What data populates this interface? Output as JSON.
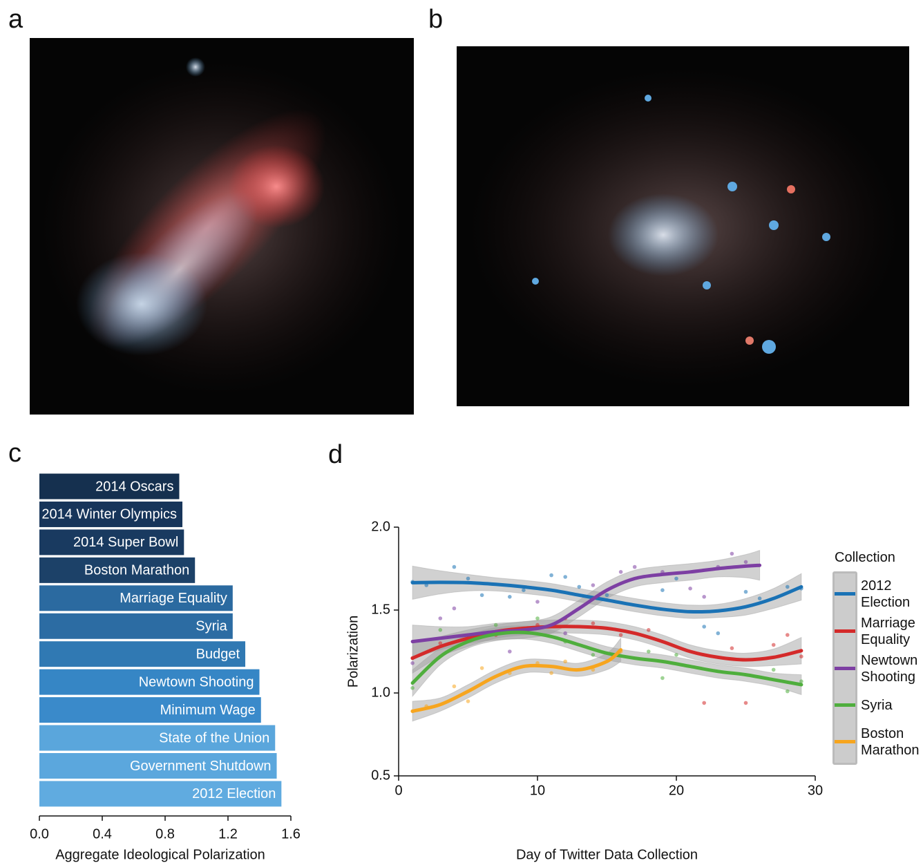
{
  "chart_data": [
    {
      "type": "image",
      "label": "a"
    },
    {
      "type": "image",
      "label": "b"
    },
    {
      "type": "bar",
      "label": "c",
      "orientation": "horizontal",
      "categories": [
        "2014 Oscars",
        "2014 Winter Olympics",
        "2014 Super Bowl",
        "Boston Marathon",
        "Marriage Equality",
        "Syria",
        "Budget",
        "Newtown Shooting",
        "Minimum Wage",
        "State of the Union",
        "Government Shutdown",
        "2012 Election"
      ],
      "values": [
        0.89,
        0.91,
        0.92,
        0.99,
        1.23,
        1.23,
        1.31,
        1.4,
        1.41,
        1.5,
        1.51,
        1.54
      ],
      "colors": [
        "#15304f",
        "#17355a",
        "#193a60",
        "#1c4168",
        "#2b6aa0",
        "#2c6ca3",
        "#3079b3",
        "#3686c5",
        "#3a8aca",
        "#5aa6dc",
        "#5ba7dd",
        "#60abe0"
      ],
      "xlabel": "Aggregate Ideological Polarization",
      "xlim": [
        0,
        1.6
      ],
      "xticks": [
        {
          "value": 0,
          "label": "0.0"
        },
        0.4,
        0.8,
        1.2,
        1.6
      ]
    },
    {
      "type": "line",
      "label": "d",
      "xlabel": "Day of Twitter Data Collection",
      "ylabel": "Polarization",
      "xlim": [
        0,
        30
      ],
      "xticks": [
        0,
        10,
        20,
        30
      ],
      "ylim": [
        0.5,
        2.0
      ],
      "yticks": [
        0.5,
        {
          "value": 1,
          "label": "1.0"
        },
        1.5,
        {
          "value": 2,
          "label": "2.0"
        }
      ],
      "legend_title": "Collection",
      "legend_position": "right",
      "series": [
        {
          "name": "2012 Election",
          "color": "#1a72b5",
          "x": [
            1,
            3,
            5,
            7,
            9,
            11,
            13,
            15,
            17,
            19,
            21,
            23,
            25,
            27,
            29
          ],
          "values": [
            1.665,
            1.667,
            1.665,
            1.655,
            1.64,
            1.62,
            1.59,
            1.56,
            1.53,
            1.505,
            1.49,
            1.495,
            1.52,
            1.57,
            1.64
          ],
          "ci_lower": [
            1.565,
            1.597,
            1.615,
            1.615,
            1.6,
            1.58,
            1.55,
            1.52,
            1.49,
            1.465,
            1.45,
            1.455,
            1.47,
            1.51,
            1.56
          ],
          "ci_upper": [
            1.765,
            1.737,
            1.715,
            1.695,
            1.68,
            1.66,
            1.63,
            1.6,
            1.57,
            1.545,
            1.53,
            1.535,
            1.57,
            1.63,
            1.72
          ],
          "points_x": [
            1,
            2,
            4,
            5,
            6,
            8,
            9,
            11,
            12,
            13,
            15,
            19,
            20,
            22,
            23,
            25,
            26,
            28,
            29
          ],
          "points_y": [
            1.67,
            1.65,
            1.76,
            1.69,
            1.59,
            1.58,
            1.62,
            1.71,
            1.7,
            1.64,
            1.59,
            1.62,
            1.69,
            1.4,
            1.36,
            1.61,
            1.57,
            1.64,
            1.63
          ]
        },
        {
          "name": "Marriage Equality",
          "color": "#d42a2a",
          "x": [
            1,
            3,
            5,
            7,
            9,
            11,
            13,
            15,
            17,
            19,
            21,
            23,
            25,
            27,
            29
          ],
          "values": [
            1.21,
            1.28,
            1.33,
            1.37,
            1.39,
            1.4,
            1.4,
            1.39,
            1.36,
            1.31,
            1.25,
            1.215,
            1.2,
            1.215,
            1.255
          ],
          "ci_lower": [
            1.12,
            1.22,
            1.28,
            1.33,
            1.35,
            1.36,
            1.36,
            1.35,
            1.32,
            1.27,
            1.21,
            1.175,
            1.16,
            1.165,
            1.175
          ],
          "ci_upper": [
            1.3,
            1.34,
            1.38,
            1.41,
            1.43,
            1.44,
            1.44,
            1.43,
            1.4,
            1.35,
            1.29,
            1.255,
            1.24,
            1.265,
            1.335
          ],
          "points_x": [
            1,
            3,
            7,
            10,
            12,
            14,
            16,
            18,
            22,
            24,
            25,
            27,
            28,
            29
          ],
          "points_y": [
            1.21,
            1.3,
            1.35,
            1.41,
            1.45,
            1.42,
            1.35,
            1.38,
            0.94,
            1.27,
            0.94,
            1.29,
            1.35,
            1.22
          ]
        },
        {
          "name": "Newtown Shooting",
          "color": "#7d3fa3",
          "x": [
            1,
            3,
            5,
            7,
            9,
            11,
            13,
            15,
            17,
            19,
            21,
            23,
            25,
            26
          ],
          "values": [
            1.31,
            1.33,
            1.35,
            1.37,
            1.38,
            1.41,
            1.51,
            1.62,
            1.69,
            1.715,
            1.73,
            1.75,
            1.765,
            1.77
          ],
          "ci_lower": [
            1.21,
            1.26,
            1.3,
            1.32,
            1.33,
            1.36,
            1.46,
            1.57,
            1.64,
            1.665,
            1.68,
            1.7,
            1.695,
            1.68
          ],
          "ci_upper": [
            1.41,
            1.4,
            1.4,
            1.42,
            1.43,
            1.46,
            1.56,
            1.67,
            1.74,
            1.765,
            1.78,
            1.8,
            1.835,
            1.86
          ],
          "points_x": [
            1,
            3,
            4,
            8,
            10,
            12,
            14,
            16,
            17,
            19,
            21,
            22,
            23,
            24,
            25
          ],
          "points_y": [
            1.18,
            1.45,
            1.51,
            1.25,
            1.55,
            1.36,
            1.65,
            1.73,
            1.76,
            1.73,
            1.63,
            1.58,
            1.76,
            1.84,
            1.79
          ]
        },
        {
          "name": "Syria",
          "color": "#4fae3d",
          "x": [
            1,
            3,
            5,
            7,
            9,
            11,
            13,
            15,
            17,
            19,
            21,
            23,
            25,
            27,
            29
          ],
          "values": [
            1.06,
            1.22,
            1.31,
            1.355,
            1.365,
            1.34,
            1.29,
            1.24,
            1.21,
            1.19,
            1.16,
            1.13,
            1.11,
            1.08,
            1.05
          ],
          "ci_lower": [
            0.98,
            1.17,
            1.27,
            1.315,
            1.325,
            1.3,
            1.25,
            1.2,
            1.17,
            1.15,
            1.12,
            1.09,
            1.07,
            1.04,
            0.99
          ],
          "ci_upper": [
            1.14,
            1.27,
            1.35,
            1.395,
            1.405,
            1.38,
            1.33,
            1.28,
            1.25,
            1.23,
            1.2,
            1.17,
            1.15,
            1.12,
            1.11
          ],
          "points_x": [
            1,
            3,
            7,
            10,
            12,
            14,
            18,
            19,
            20,
            27,
            28,
            29
          ],
          "points_y": [
            1.03,
            1.38,
            1.41,
            1.45,
            1.31,
            1.23,
            1.25,
            1.09,
            1.23,
            1.14,
            1.01,
            1.07
          ]
        },
        {
          "name": "Boston Marathon",
          "color": "#f7a51e",
          "x": [
            1,
            3,
            5,
            7,
            9,
            11,
            13,
            15,
            16
          ],
          "values": [
            0.89,
            0.93,
            1.01,
            1.1,
            1.16,
            1.16,
            1.14,
            1.19,
            1.26
          ],
          "ci_lower": [
            0.83,
            0.89,
            0.97,
            1.06,
            1.12,
            1.12,
            1.1,
            1.14,
            1.19
          ],
          "ci_upper": [
            0.95,
            0.97,
            1.05,
            1.14,
            1.2,
            1.2,
            1.18,
            1.24,
            1.33
          ],
          "points_x": [
            1,
            2,
            4,
            5,
            6,
            8,
            10,
            11,
            12,
            14,
            16
          ],
          "points_y": [
            0.89,
            0.92,
            1.04,
            0.95,
            1.15,
            1.12,
            1.18,
            1.12,
            1.19,
            1.14,
            1.25
          ]
        }
      ]
    }
  ]
}
